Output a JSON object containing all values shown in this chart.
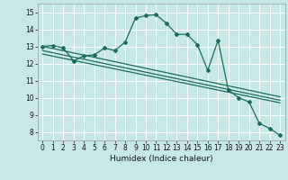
{
  "xlabel": "Humidex (Indice chaleur)",
  "background_color": "#c8e8e8",
  "grid_color": "#ffffff",
  "line_color": "#1a6b5a",
  "xlim": [
    -0.5,
    23.5
  ],
  "ylim": [
    7.5,
    15.5
  ],
  "xticks": [
    0,
    1,
    2,
    3,
    4,
    5,
    6,
    7,
    8,
    9,
    10,
    11,
    12,
    13,
    14,
    15,
    16,
    17,
    18,
    19,
    20,
    21,
    22,
    23
  ],
  "yticks": [
    8,
    9,
    10,
    11,
    12,
    13,
    14,
    15
  ],
  "series1_x": [
    0,
    1,
    2,
    3,
    4,
    5,
    6,
    7,
    8,
    9,
    10,
    11,
    12,
    13,
    14,
    15,
    16,
    17,
    18,
    19,
    20,
    21,
    22,
    23
  ],
  "series1_y": [
    13.0,
    13.05,
    12.9,
    12.15,
    12.45,
    12.5,
    12.9,
    12.75,
    13.25,
    14.65,
    14.8,
    14.85,
    14.35,
    13.7,
    13.7,
    13.1,
    11.6,
    13.35,
    10.45,
    10.0,
    9.75,
    8.5,
    8.2,
    7.8
  ],
  "series2_x": [
    0,
    23
  ],
  "series2_y": [
    13.0,
    10.05
  ],
  "series3_x": [
    0,
    23
  ],
  "series3_y": [
    12.75,
    9.85
  ],
  "series4_x": [
    0,
    23
  ],
  "series4_y": [
    12.55,
    9.7
  ]
}
